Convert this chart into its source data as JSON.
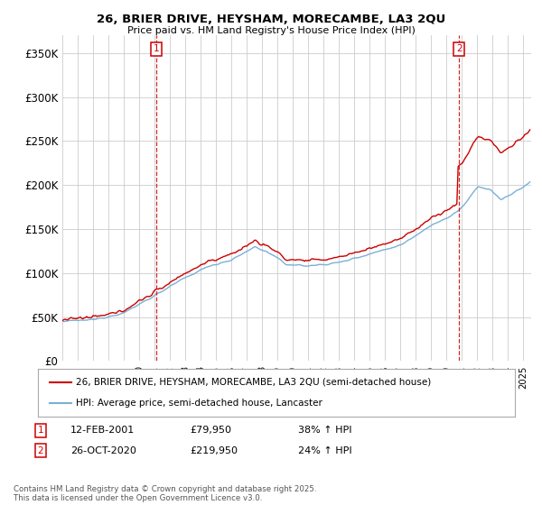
{
  "title_line1": "26, BRIER DRIVE, HEYSHAM, MORECAMBE, LA3 2QU",
  "title_line2": "Price paid vs. HM Land Registry's House Price Index (HPI)",
  "ylim": [
    0,
    370000
  ],
  "yticks": [
    0,
    50000,
    100000,
    150000,
    200000,
    250000,
    300000,
    350000
  ],
  "ytick_labels": [
    "£0",
    "£50K",
    "£100K",
    "£150K",
    "£200K",
    "£250K",
    "£300K",
    "£350K"
  ],
  "red_color": "#cc0000",
  "blue_color": "#7ab0d4",
  "vline_color": "#cc0000",
  "grid_color": "#cccccc",
  "sale1_year": 2001.12,
  "sale1_price": 79950,
  "sale2_year": 2020.82,
  "sale2_price": 219950,
  "legend_line1": "26, BRIER DRIVE, HEYSHAM, MORECAMBE, LA3 2QU (semi-detached house)",
  "legend_line2": "HPI: Average price, semi-detached house, Lancaster",
  "annotation1_date": "12-FEB-2001",
  "annotation1_price": "£79,950",
  "annotation1_hpi": "38% ↑ HPI",
  "annotation2_date": "26-OCT-2020",
  "annotation2_price": "£219,950",
  "annotation2_hpi": "24% ↑ HPI",
  "footer": "Contains HM Land Registry data © Crown copyright and database right 2025.\nThis data is licensed under the Open Government Licence v3.0.",
  "bg_color": "#ffffff",
  "xmin": 1995,
  "xmax": 2025.5
}
